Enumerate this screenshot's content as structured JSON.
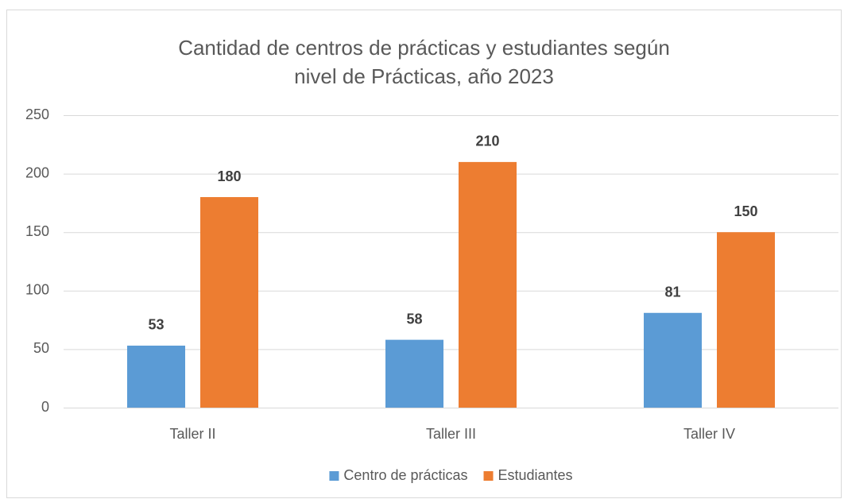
{
  "chart_data": {
    "type": "bar",
    "title": "Cantidad de centros de prácticas y estudiantes según nivel de Prácticas, año 2023",
    "categories": [
      "Taller II",
      "Taller III",
      "Taller IV"
    ],
    "series": [
      {
        "name": "Centro de prácticas",
        "color": "#5b9bd5",
        "values": [
          53,
          58,
          81
        ]
      },
      {
        "name": "Estudiantes",
        "color": "#ed7d31",
        "values": [
          180,
          210,
          150
        ]
      }
    ],
    "ylim": [
      0,
      250
    ],
    "yticks": [
      0,
      50,
      100,
      150,
      200,
      250
    ],
    "grid": true,
    "legend": "bottom"
  }
}
